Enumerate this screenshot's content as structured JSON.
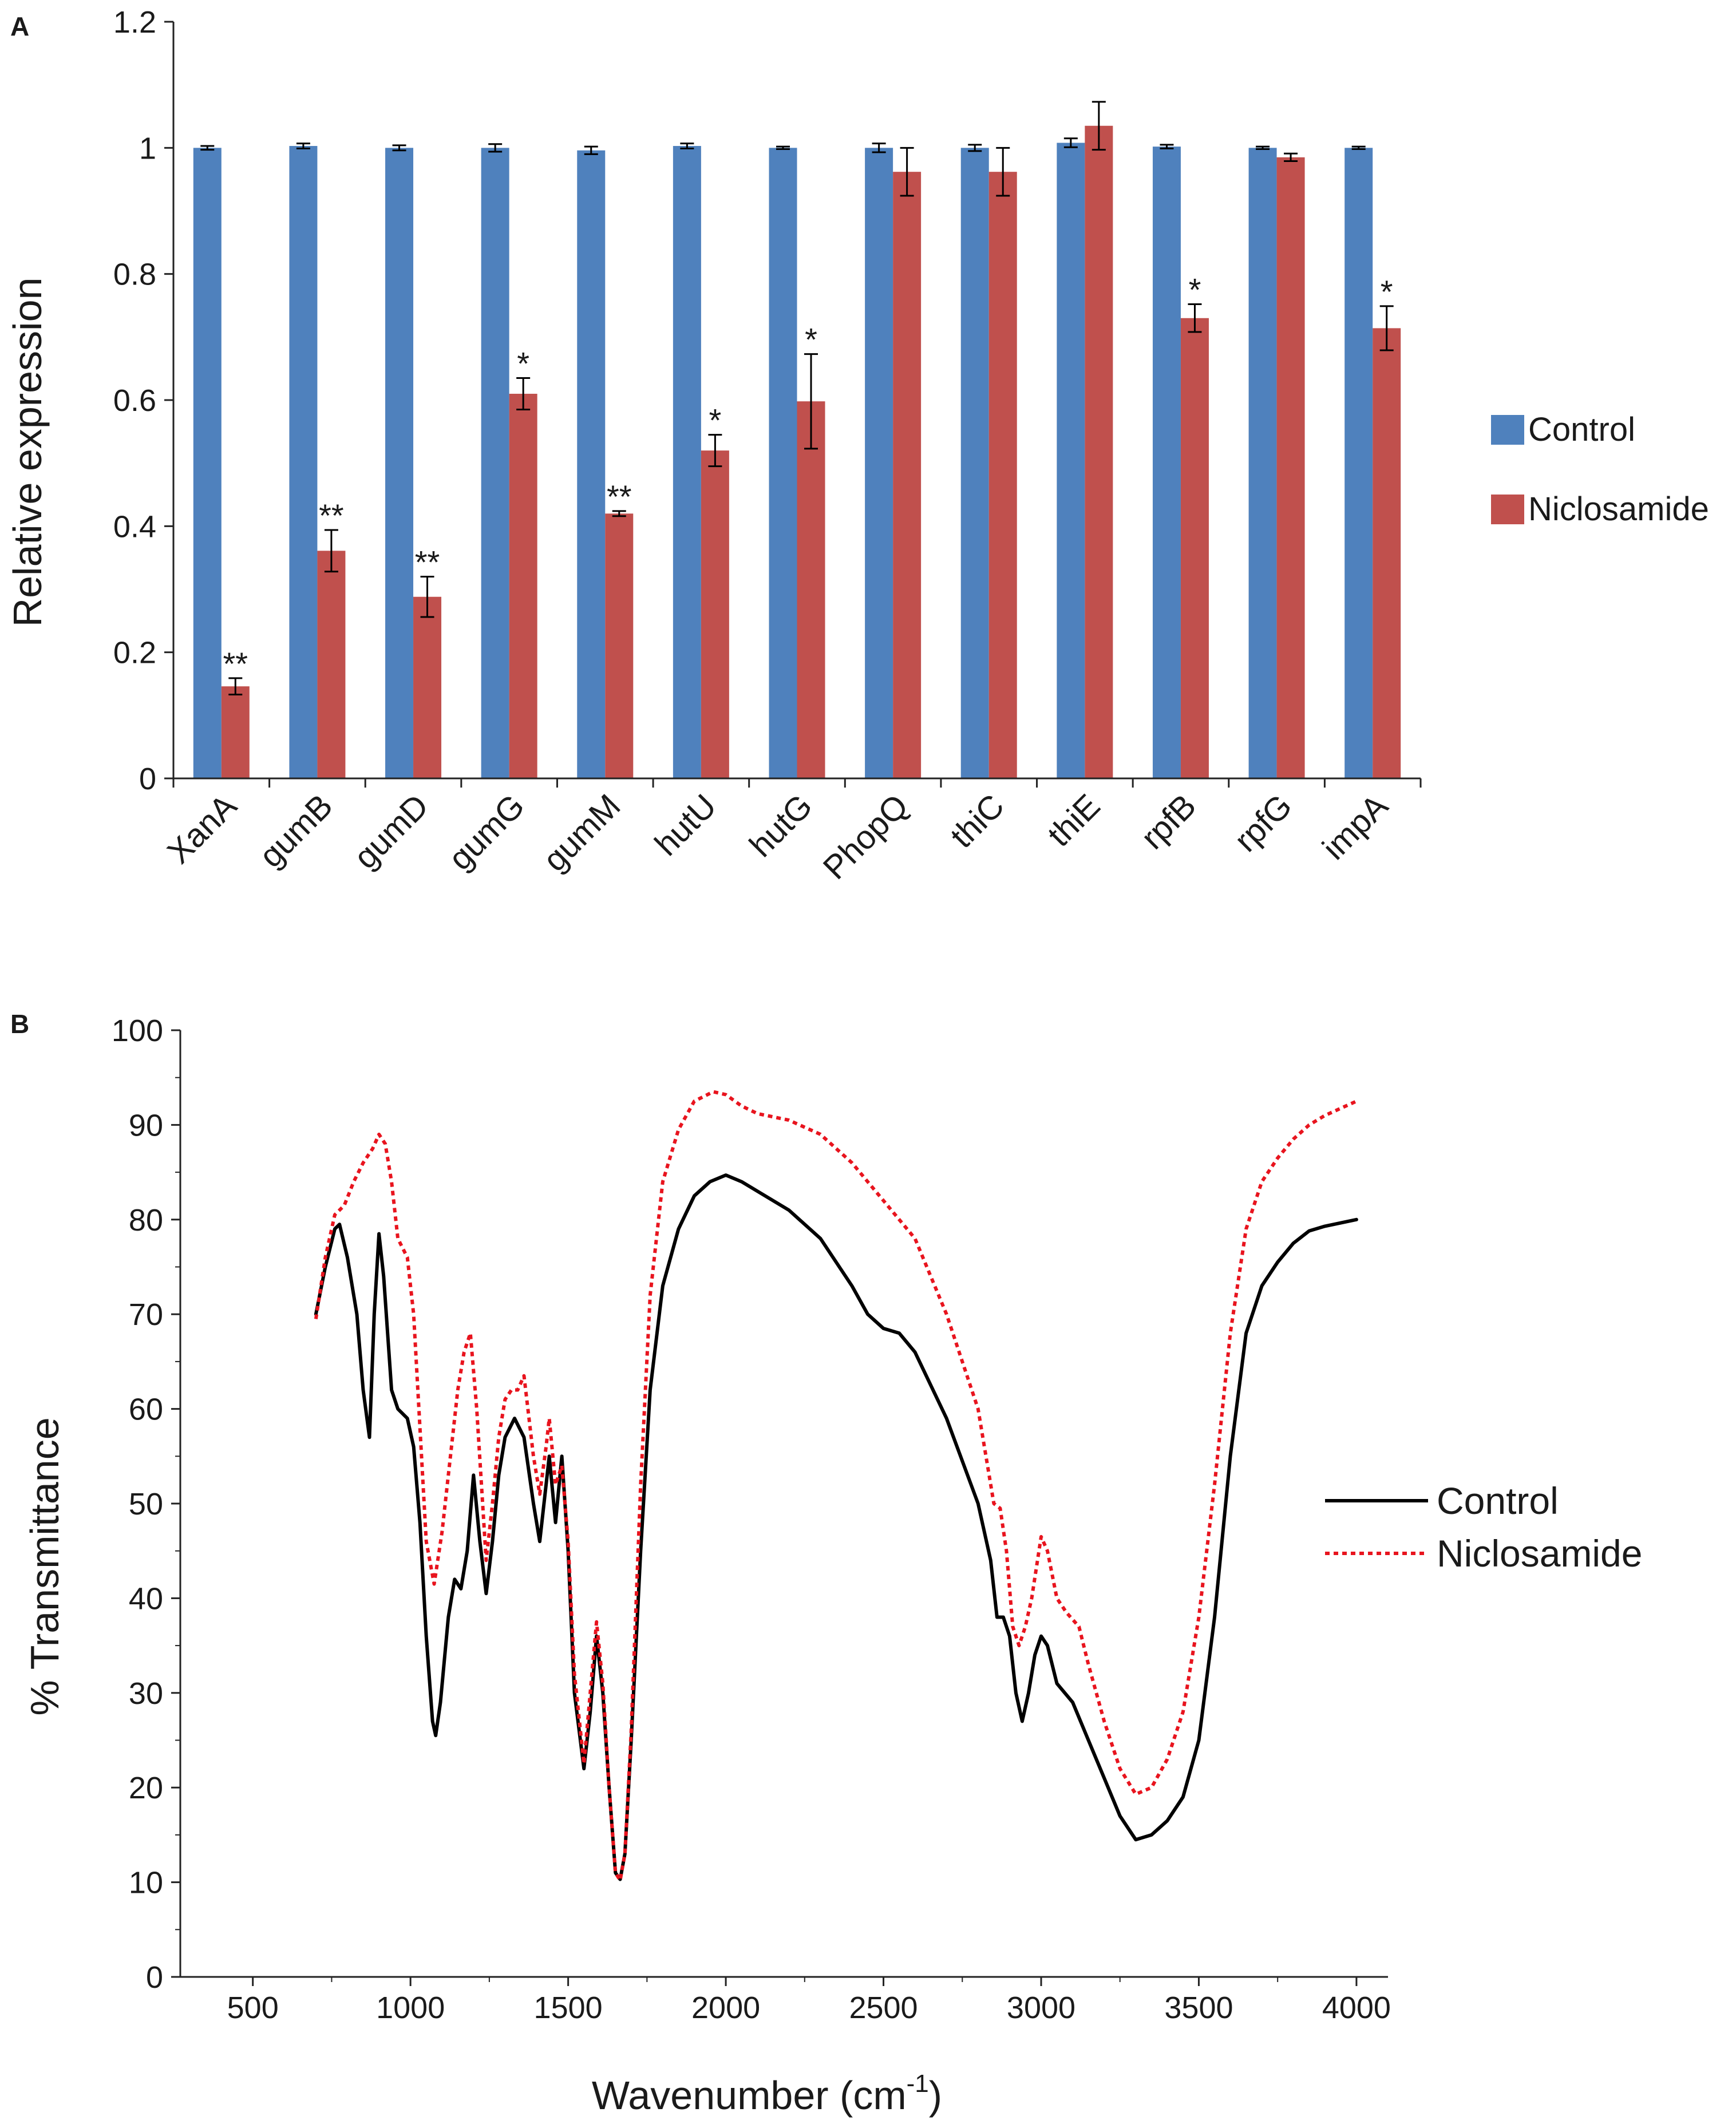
{
  "chart_data": [
    {
      "panel": "A",
      "type": "bar",
      "ylabel": "Relative expression",
      "xlabel": "",
      "ylim": [
        0,
        1.2
      ],
      "yticks": [
        "0",
        "0.2",
        "0.4",
        "0.6",
        "0.8",
        "1",
        "1.2"
      ],
      "categories": [
        "XanA",
        "gumB",
        "gumD",
        "gumG",
        "gumM",
        "hutU",
        "hutG",
        "PhopQ",
        "thiC",
        "thiE",
        "rpfB",
        "rpfG",
        "impA"
      ],
      "series": [
        {
          "name": "Control",
          "color": "#4f81bd",
          "values": [
            1.0,
            1.003,
            1.0,
            1.0,
            0.996,
            1.003,
            1.0,
            1.0,
            1.0,
            1.008,
            1.002,
            1.0,
            1.0
          ],
          "errors": [
            0.003,
            0.004,
            0.004,
            0.006,
            0.006,
            0.004,
            0.002,
            0.007,
            0.005,
            0.007,
            0.003,
            0.002,
            0.002
          ]
        },
        {
          "name": "Niclosamide",
          "color": "#c0504d",
          "values": [
            0.146,
            0.361,
            0.288,
            0.61,
            0.42,
            0.52,
            0.598,
            0.962,
            0.962,
            1.035,
            0.73,
            0.985,
            0.714
          ],
          "errors": [
            0.013,
            0.033,
            0.032,
            0.025,
            0.004,
            0.025,
            0.075,
            0.038,
            0.038,
            0.038,
            0.022,
            0.006,
            0.035
          ]
        }
      ],
      "significance": [
        "**",
        "**",
        "**",
        "*",
        "**",
        "*",
        "*",
        "",
        "",
        "",
        "*",
        "",
        "*"
      ]
    },
    {
      "panel": "B",
      "type": "line",
      "xlabel": "Wavenumber (cm",
      "xlabel_superscript": "-1",
      "xlabel_close": ")",
      "ylabel": "% Transmittance",
      "xlim": [
        270,
        4100
      ],
      "ylim": [
        0,
        100
      ],
      "xticks": [
        "500",
        "1000",
        "1500",
        "2000",
        "2500",
        "3000",
        "3500",
        "4000"
      ],
      "yticks": [
        "0",
        "10",
        "20",
        "30",
        "40",
        "50",
        "60",
        "70",
        "80",
        "90",
        "100"
      ],
      "series": [
        {
          "name": "Control",
          "color": "#000000",
          "style": "solid",
          "points": [
            [
              700,
              70
            ],
            [
              730,
              75
            ],
            [
              760,
              79
            ],
            [
              775,
              79.5
            ],
            [
              800,
              76
            ],
            [
              830,
              70
            ],
            [
              850,
              62
            ],
            [
              870,
              57
            ],
            [
              885,
              70
            ],
            [
              900,
              78.5
            ],
            [
              915,
              74
            ],
            [
              940,
              62
            ],
            [
              960,
              60
            ],
            [
              990,
              59
            ],
            [
              1010,
              56
            ],
            [
              1030,
              48
            ],
            [
              1050,
              36
            ],
            [
              1070,
              27
            ],
            [
              1080,
              25.5
            ],
            [
              1095,
              29
            ],
            [
              1120,
              38
            ],
            [
              1140,
              42
            ],
            [
              1160,
              41
            ],
            [
              1180,
              45
            ],
            [
              1200,
              53
            ],
            [
              1220,
              46
            ],
            [
              1240,
              40.5
            ],
            [
              1260,
              46
            ],
            [
              1280,
              53
            ],
            [
              1300,
              57
            ],
            [
              1330,
              59
            ],
            [
              1360,
              57
            ],
            [
              1390,
              50
            ],
            [
              1410,
              46
            ],
            [
              1430,
              52
            ],
            [
              1440,
              55
            ],
            [
              1460,
              48
            ],
            [
              1480,
              55
            ],
            [
              1500,
              45
            ],
            [
              1520,
              30
            ],
            [
              1550,
              22
            ],
            [
              1570,
              28
            ],
            [
              1590,
              36
            ],
            [
              1610,
              30
            ],
            [
              1630,
              20
            ],
            [
              1650,
              11
            ],
            [
              1665,
              10.3
            ],
            [
              1680,
              13
            ],
            [
              1700,
              25
            ],
            [
              1730,
              45
            ],
            [
              1760,
              62
            ],
            [
              1800,
              73
            ],
            [
              1850,
              79
            ],
            [
              1900,
              82.5
            ],
            [
              1950,
              84
            ],
            [
              2000,
              84.7
            ],
            [
              2050,
              84
            ],
            [
              2100,
              83
            ],
            [
              2200,
              81
            ],
            [
              2300,
              78
            ],
            [
              2400,
              73
            ],
            [
              2450,
              70
            ],
            [
              2500,
              68.5
            ],
            [
              2550,
              68
            ],
            [
              2600,
              66
            ],
            [
              2700,
              59
            ],
            [
              2800,
              50
            ],
            [
              2840,
              44
            ],
            [
              2860,
              38
            ],
            [
              2880,
              38
            ],
            [
              2900,
              36
            ],
            [
              2920,
              30
            ],
            [
              2940,
              27
            ],
            [
              2960,
              30
            ],
            [
              2980,
              34
            ],
            [
              3000,
              36
            ],
            [
              3020,
              35
            ],
            [
              3050,
              31
            ],
            [
              3100,
              29
            ],
            [
              3150,
              25
            ],
            [
              3200,
              21
            ],
            [
              3250,
              17
            ],
            [
              3300,
              14.5
            ],
            [
              3350,
              15
            ],
            [
              3400,
              16.5
            ],
            [
              3450,
              19
            ],
            [
              3500,
              25
            ],
            [
              3550,
              38
            ],
            [
              3600,
              55
            ],
            [
              3650,
              68
            ],
            [
              3700,
              73
            ],
            [
              3750,
              75.5
            ],
            [
              3800,
              77.5
            ],
            [
              3850,
              78.8
            ],
            [
              3900,
              79.3
            ],
            [
              4000,
              80
            ]
          ]
        },
        {
          "name": "Niclosamide",
          "color": "#e8141e",
          "style": "dashed",
          "points": [
            [
              700,
              69.5
            ],
            [
              730,
              76
            ],
            [
              760,
              80.5
            ],
            [
              790,
              81.5
            ],
            [
              820,
              84
            ],
            [
              850,
              86
            ],
            [
              880,
              87.5
            ],
            [
              900,
              89
            ],
            [
              920,
              88
            ],
            [
              940,
              84
            ],
            [
              960,
              78
            ],
            [
              990,
              76
            ],
            [
              1010,
              70
            ],
            [
              1030,
              58
            ],
            [
              1050,
              46
            ],
            [
              1075,
              41.5
            ],
            [
              1100,
              47
            ],
            [
              1130,
              56
            ],
            [
              1150,
              62
            ],
            [
              1170,
              66
            ],
            [
              1190,
              68
            ],
            [
              1210,
              60
            ],
            [
              1240,
              44
            ],
            [
              1260,
              50
            ],
            [
              1280,
              57
            ],
            [
              1300,
              61
            ],
            [
              1320,
              62
            ],
            [
              1340,
              62
            ],
            [
              1360,
              63.5
            ],
            [
              1390,
              55
            ],
            [
              1410,
              51
            ],
            [
              1430,
              56
            ],
            [
              1440,
              59
            ],
            [
              1460,
              52
            ],
            [
              1480,
              54
            ],
            [
              1500,
              46
            ],
            [
              1520,
              32
            ],
            [
              1550,
              22.5
            ],
            [
              1570,
              30
            ],
            [
              1590,
              37.5
            ],
            [
              1610,
              31
            ],
            [
              1630,
              20
            ],
            [
              1650,
              11
            ],
            [
              1665,
              10.2
            ],
            [
              1680,
              13
            ],
            [
              1700,
              26
            ],
            [
              1730,
              52
            ],
            [
              1760,
              72
            ],
            [
              1800,
              84
            ],
            [
              1850,
              89.5
            ],
            [
              1900,
              92.5
            ],
            [
              1960,
              93.5
            ],
            [
              2000,
              93.2
            ],
            [
              2050,
              92
            ],
            [
              2100,
              91.2
            ],
            [
              2200,
              90.5
            ],
            [
              2300,
              89
            ],
            [
              2400,
              86
            ],
            [
              2500,
              82
            ],
            [
              2600,
              78
            ],
            [
              2700,
              70
            ],
            [
              2800,
              60
            ],
            [
              2850,
              50
            ],
            [
              2870,
              49.5
            ],
            [
              2890,
              45
            ],
            [
              2910,
              37
            ],
            [
              2930,
              35
            ],
            [
              2950,
              37
            ],
            [
              2970,
              40
            ],
            [
              3000,
              46.5
            ],
            [
              3020,
              45
            ],
            [
              3050,
              40
            ],
            [
              3080,
              38.5
            ],
            [
              3120,
              37
            ],
            [
              3150,
              33
            ],
            [
              3200,
              27
            ],
            [
              3250,
              22
            ],
            [
              3300,
              19.3
            ],
            [
              3350,
              20
            ],
            [
              3400,
              23
            ],
            [
              3450,
              28
            ],
            [
              3500,
              38
            ],
            [
              3550,
              52
            ],
            [
              3600,
              68
            ],
            [
              3650,
              79
            ],
            [
              3700,
              84
            ],
            [
              3750,
              86.5
            ],
            [
              3800,
              88.5
            ],
            [
              3850,
              90
            ],
            [
              3900,
              91
            ],
            [
              4000,
              92.5
            ]
          ]
        }
      ]
    }
  ],
  "legend_a": {
    "control": "Control",
    "niclosamide": "Niclosamide",
    "control_color": "#4f81bd",
    "niclosamide_color": "#c0504d"
  },
  "legend_b": {
    "control": "Control",
    "niclosamide": "Niclosamide",
    "control_color": "#000000",
    "niclosamide_color": "#e8141e"
  }
}
